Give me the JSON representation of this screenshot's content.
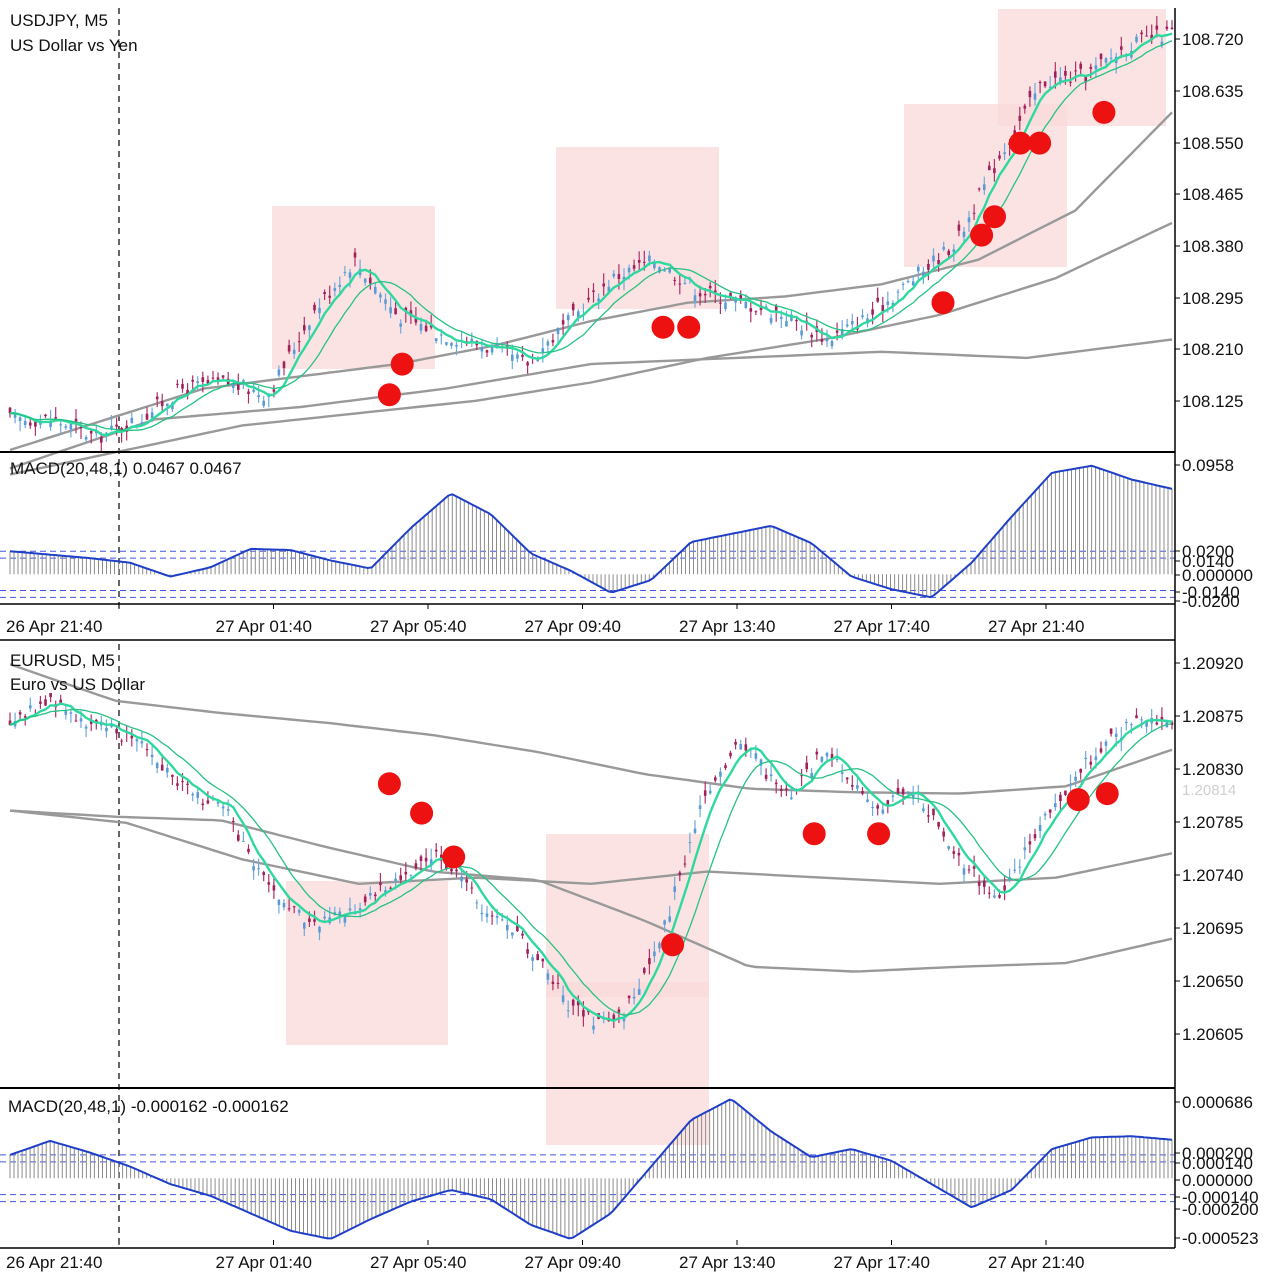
{
  "charts": [
    {
      "id": "usdjpy",
      "symbol_line": "USDJPY, M5",
      "description": "US Dollar vs Yen",
      "price_ticks": [
        "108.720",
        "108.635",
        "108.550",
        "108.465",
        "108.380",
        "108.295",
        "108.210",
        "108.125"
      ],
      "macd_label": "MACD(20,48,1) 0.0467 0.0467",
      "macd_ticks": [
        "0.0958",
        "0.0200",
        "0.0140",
        "0.000000",
        "-0.0140",
        "-0.0200"
      ],
      "time_ticks": [
        "26 Apr 21:40",
        "27 Apr 01:40",
        "27 Apr 05:40",
        "27 Apr 09:40",
        "27 Apr 13:40",
        "27 Apr 17:40",
        "27 Apr 21:40"
      ]
    },
    {
      "id": "eurusd",
      "symbol_line": "EURUSD, M5",
      "description": "Euro vs US Dollar",
      "price_ticks": [
        "1.20920",
        "1.20875",
        "1.20830",
        "1.20785",
        "1.20740",
        "1.20695",
        "1.20650",
        "1.20605"
      ],
      "current_price": "1.20814",
      "macd_label": "MACD(20,48,1) -0.000162 -0.000162",
      "macd_ticks": [
        "0.000686",
        "0.000200",
        "0.000140",
        "0.000000",
        "-0.000140",
        "-0.000200",
        "-0.000523"
      ],
      "time_ticks": [
        "26 Apr 21:40",
        "27 Apr 01:40",
        "27 Apr 05:40",
        "27 Apr 09:40",
        "27 Apr 13:40",
        "27 Apr 17:40",
        "27 Apr 21:40"
      ]
    }
  ],
  "chart_data": [
    {
      "type": "line",
      "title": "USDJPY, M5",
      "subtitle": "US Dollar vs Yen",
      "x": [
        "26 Apr 21:40",
        "27 Apr 01:40",
        "27 Apr 05:40",
        "27 Apr 09:40",
        "27 Apr 13:40",
        "27 Apr 17:40",
        "27 Apr 21:40"
      ],
      "ylim": [
        108.06,
        108.78
      ],
      "price_path": [
        108.11,
        108.11,
        108.08,
        108.11,
        108.16,
        108.17,
        108.15,
        108.28,
        108.37,
        108.28,
        108.25,
        108.23,
        108.2,
        108.27,
        108.34,
        108.37,
        108.32,
        108.3,
        108.28,
        108.24,
        108.28,
        108.34,
        108.4,
        108.54,
        108.66,
        108.67,
        108.72,
        108.74
      ],
      "ma_slow_1": [
        108.06,
        108.11,
        108.16,
        108.18,
        108.2,
        108.23,
        108.27,
        108.3,
        108.31,
        108.33,
        108.37,
        108.45,
        108.61
      ],
      "ma_slow_2": [
        108.02,
        108.06,
        108.1,
        108.12,
        108.14,
        108.17,
        108.21,
        108.24,
        108.28,
        108.34,
        108.43
      ],
      "ma_slow_3": [
        108.03,
        108.11,
        108.13,
        108.16,
        108.2,
        108.21,
        108.22,
        108.21,
        108.24
      ],
      "signals": [
        {
          "x": "27 Apr 04:40",
          "y": 108.15
        },
        {
          "x": "27 Apr 05:00",
          "y": 108.2
        },
        {
          "x": "27 Apr 11:45",
          "y": 108.26
        },
        {
          "x": "27 Apr 12:25",
          "y": 108.26
        },
        {
          "x": "27 Apr 19:00",
          "y": 108.3
        },
        {
          "x": "27 Apr 20:00",
          "y": 108.41
        },
        {
          "x": "27 Apr 20:20",
          "y": 108.44
        },
        {
          "x": "27 Apr 21:00",
          "y": 108.56
        },
        {
          "x": "27 Apr 21:30",
          "y": 108.56
        },
        {
          "x": "27 Apr 23:10",
          "y": 108.61
        }
      ],
      "macd": {
        "ylim": [
          -0.024,
          0.099
        ],
        "levels": [
          0.02,
          0.014,
          -0.014,
          -0.02
        ],
        "values": [
          0.02,
          0.017,
          0.014,
          0.01,
          -0.002,
          0.006,
          0.022,
          0.021,
          0.012,
          0.005,
          0.04,
          0.07,
          0.052,
          0.018,
          0.003,
          -0.016,
          -0.005,
          0.028,
          0.035,
          0.042,
          0.027,
          -0.002,
          -0.013,
          -0.02,
          0.01,
          0.05,
          0.088,
          0.094,
          0.082,
          0.074
        ]
      },
      "colors": {
        "price": "#2fd89e",
        "ma_fast": "#26c283",
        "ma_slow": "#999999",
        "macd_line": "#1f3fc6",
        "signal_dot": "#ee1111",
        "zone": "#fadada"
      }
    },
    {
      "type": "line",
      "title": "EURUSD, M5",
      "subtitle": "Euro vs US Dollar",
      "x": [
        "26 Apr 21:40",
        "27 Apr 01:40",
        "27 Apr 05:40",
        "27 Apr 09:40",
        "27 Apr 13:40",
        "27 Apr 17:40",
        "27 Apr 21:40"
      ],
      "ylim": [
        1.20575,
        1.20935
      ],
      "price_path": [
        1.20875,
        1.2089,
        1.20868,
        1.2086,
        1.2082,
        1.208,
        1.20735,
        1.20705,
        1.2072,
        1.20745,
        1.20765,
        1.2072,
        1.2069,
        1.2064,
        1.2062,
        1.2068,
        1.208,
        1.2086,
        1.2081,
        1.2085,
        1.208,
        1.2082,
        1.2076,
        1.2073,
        1.2079,
        1.2084,
        1.2087,
        1.20875
      ],
      "ma_slow_1": [
        1.2092,
        1.2089,
        1.2088,
        1.20872,
        1.20862,
        1.20848,
        1.2083,
        1.20818,
        1.20815,
        1.20814,
        1.2082,
        1.2085
      ],
      "ma_slow_2": [
        1.208,
        1.20795,
        1.20792,
        1.2077,
        1.2075,
        1.20743,
        1.2071,
        1.20672,
        1.20668,
        1.20672,
        1.20675,
        1.20695
      ],
      "ma_slow_3": [
        1.208,
        1.2079,
        1.2076,
        1.2074,
        1.20745,
        1.2074,
        1.2075,
        1.20745,
        1.2074,
        1.20745,
        1.20765
      ],
      "signals": [
        {
          "x": "27 Apr 04:40",
          "y": 1.20822
        },
        {
          "x": "27 Apr 05:30",
          "y": 1.20798
        },
        {
          "x": "27 Apr 06:20",
          "y": 1.20762
        },
        {
          "x": "27 Apr 12:00",
          "y": 1.2069
        },
        {
          "x": "27 Apr 15:40",
          "y": 1.20781
        },
        {
          "x": "27 Apr 17:20",
          "y": 1.20781
        },
        {
          "x": "27 Apr 22:30",
          "y": 1.20809
        },
        {
          "x": "27 Apr 23:15",
          "y": 1.20814
        }
      ],
      "macd": {
        "ylim": [
          -0.00058,
          0.00073
        ],
        "levels": [
          0.0002,
          0.00014,
          -0.00014,
          -0.0002
        ],
        "values": [
          0.0002,
          0.00032,
          0.00022,
          0.0001,
          -5e-05,
          -0.00015,
          -0.0003,
          -0.00045,
          -0.00052,
          -0.00035,
          -0.0002,
          -0.0001,
          -0.00018,
          -0.0004,
          -0.00052,
          -0.0003,
          0.0001,
          0.0005,
          0.00068,
          0.0004,
          0.00018,
          0.00025,
          0.00015,
          -5e-05,
          -0.00025,
          -0.0001,
          0.00025,
          0.00035,
          0.00036,
          0.00033
        ]
      },
      "colors": {
        "price": "#2fd89e",
        "ma_fast": "#26c283",
        "ma_slow": "#999999",
        "macd_line": "#1f3fc6",
        "signal_dot": "#ee1111",
        "zone": "#fadada"
      }
    }
  ]
}
